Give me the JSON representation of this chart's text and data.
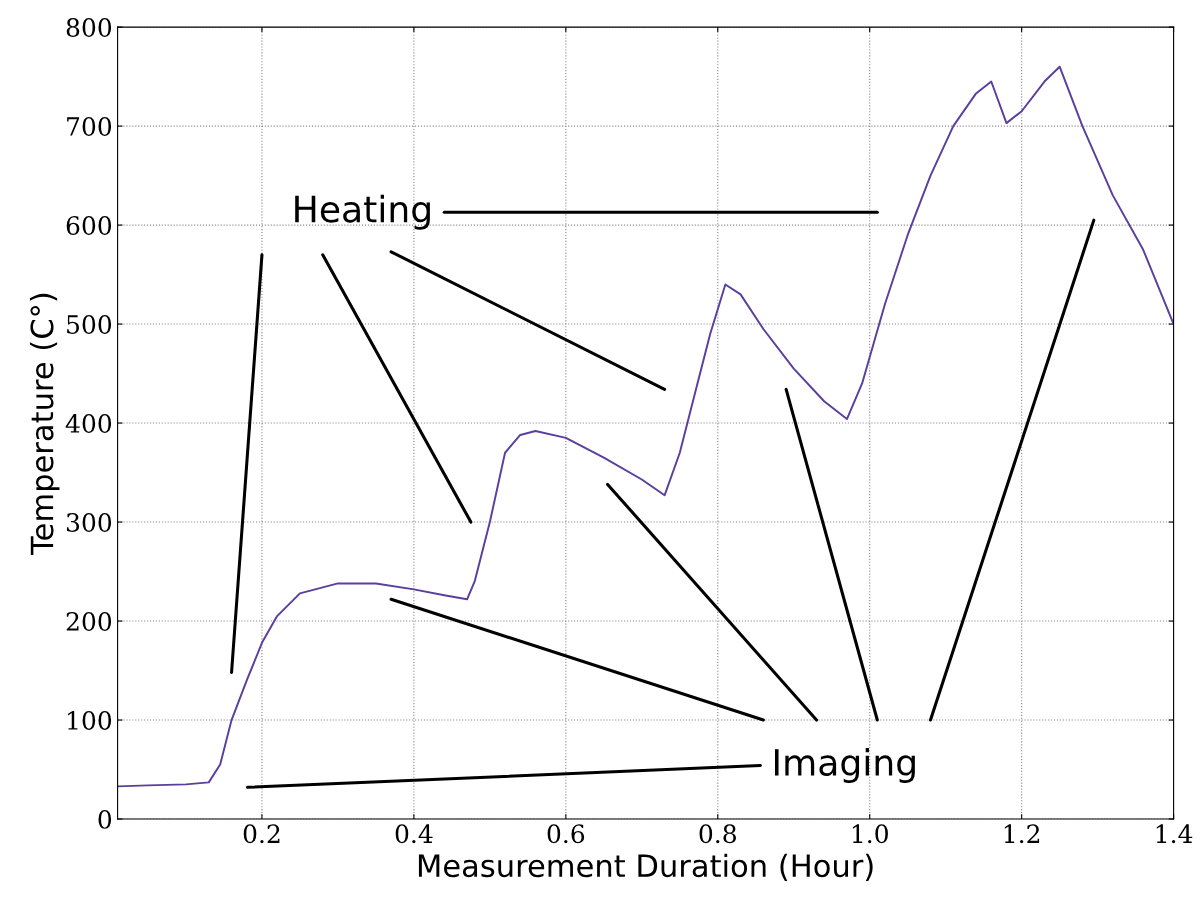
{
  "chart_data": {
    "type": "line",
    "xlabel": "Measurement Duration (Hour)",
    "ylabel": "Temperature (C°)",
    "xlim": [
      0.01,
      1.4
    ],
    "ylim": [
      0,
      800
    ],
    "xticks": [
      0.2,
      0.4,
      0.6,
      0.8,
      {
        "value": 1.0,
        "label": "1.0"
      },
      1.2,
      1.4
    ],
    "yticks": [
      0,
      100,
      200,
      300,
      400,
      500,
      600,
      700,
      800
    ],
    "grid": true,
    "marker": "none",
    "line_style": "solid",
    "series": [
      {
        "color": "#5b3f9e",
        "x": [
          0.01,
          0.05,
          0.1,
          0.13,
          0.145,
          0.16,
          0.18,
          0.2,
          0.22,
          0.25,
          0.3,
          0.35,
          0.4,
          0.44,
          0.47,
          0.48,
          0.5,
          0.52,
          0.54,
          0.56,
          0.6,
          0.65,
          0.7,
          0.73,
          0.75,
          0.77,
          0.79,
          0.81,
          0.83,
          0.86,
          0.9,
          0.94,
          0.97,
          0.99,
          1.02,
          1.05,
          1.08,
          1.11,
          1.14,
          1.16,
          1.18,
          1.2,
          1.23,
          1.25,
          1.28,
          1.32,
          1.36,
          1.4
        ],
        "values": [
          33,
          34,
          35,
          37,
          55,
          100,
          140,
          178,
          205,
          228,
          238,
          238,
          232,
          226,
          222,
          240,
          300,
          370,
          388,
          392,
          385,
          365,
          343,
          327,
          370,
          430,
          490,
          540,
          530,
          495,
          455,
          422,
          404,
          440,
          520,
          590,
          650,
          700,
          733,
          745,
          703,
          715,
          745,
          760,
          700,
          630,
          575,
          500
        ]
      },
      {
        "type": "line",
        "color": "#000000",
        "x": [
          0.44,
          1.01
        ],
        "values": [
          613,
          613
        ]
      },
      {
        "type": "line",
        "color": "#000000",
        "x": [
          0.2,
          0.16
        ],
        "values": [
          570,
          148
        ]
      },
      {
        "type": "line",
        "color": "#000000",
        "x": [
          0.28,
          0.475
        ],
        "values": [
          570,
          300
        ]
      },
      {
        "type": "line",
        "color": "#000000",
        "x": [
          0.37,
          0.73
        ],
        "values": [
          573,
          434
        ]
      },
      {
        "type": "line",
        "color": "#000000",
        "x": [
          0.856,
          0.181
        ],
        "values": [
          54,
          32
        ]
      },
      {
        "type": "line",
        "color": "#000000",
        "x": [
          0.86,
          0.37
        ],
        "values": [
          100,
          222
        ]
      },
      {
        "type": "line",
        "color": "#000000",
        "x": [
          0.93,
          0.655
        ],
        "values": [
          100,
          338
        ]
      },
      {
        "type": "line",
        "color": "#000000",
        "x": [
          1.01,
          0.89
        ],
        "values": [
          100,
          434
        ]
      },
      {
        "type": "line",
        "color": "#000000",
        "x": [
          1.08,
          1.295
        ],
        "values": [
          100,
          605
        ]
      }
    ],
    "annotations": [
      "Heating",
      "Imaging"
    ]
  }
}
